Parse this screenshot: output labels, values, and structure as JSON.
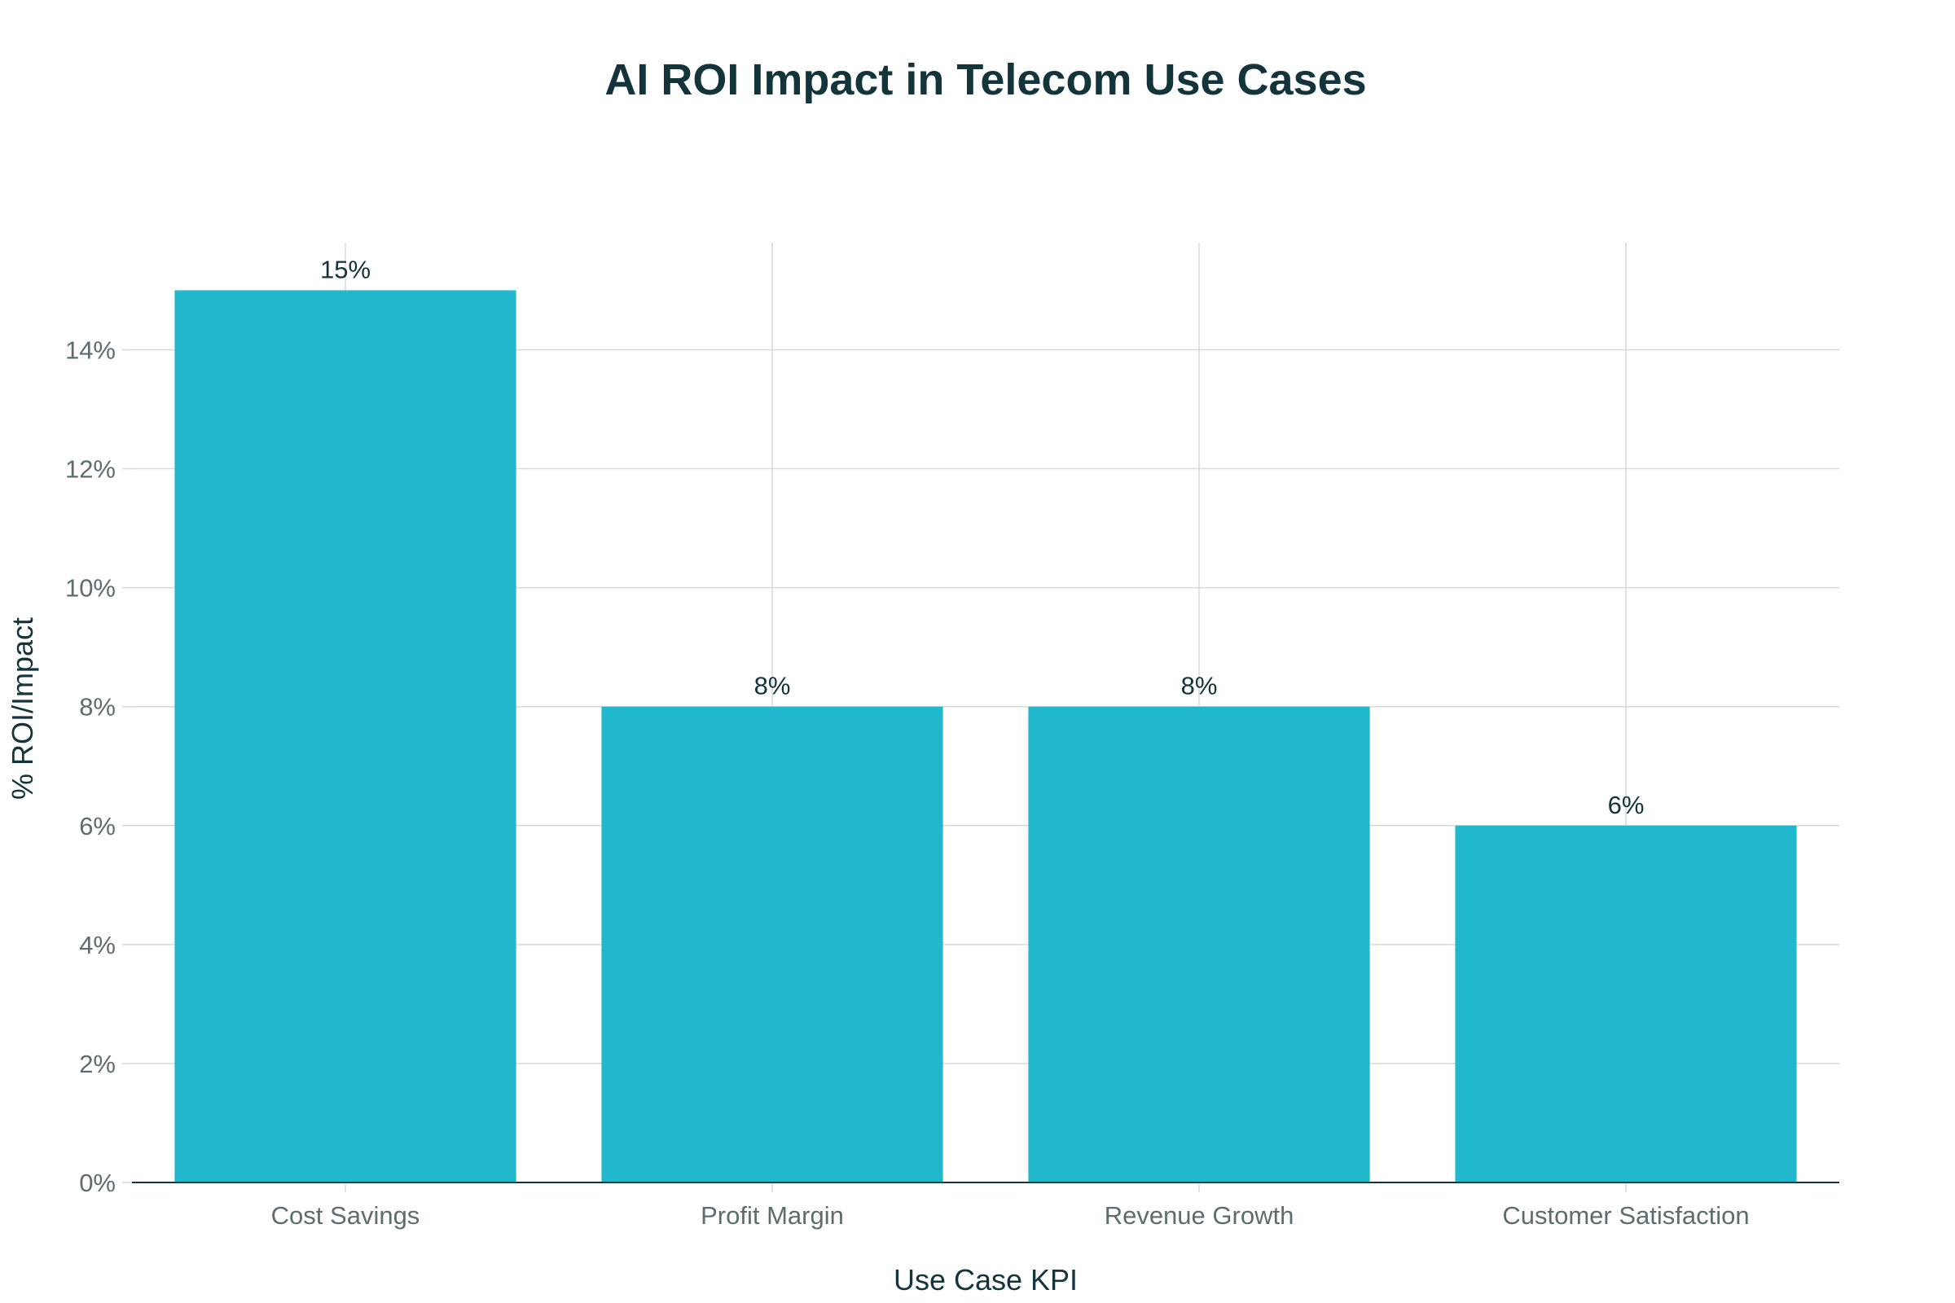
{
  "chart_data": {
    "type": "bar",
    "title": "AI ROI Impact in Telecom Use Cases",
    "xlabel": "Use Case KPI",
    "ylabel": "% ROI/Impact",
    "categories": [
      "Cost Savings",
      "Profit Margin",
      "Revenue Growth",
      "Customer Satisfaction"
    ],
    "values": [
      15,
      8,
      8,
      6
    ],
    "data_labels": [
      "15%",
      "8%",
      "8%",
      "6%"
    ],
    "ylim": [
      0,
      15.8
    ],
    "yticks": [
      0,
      2,
      4,
      6,
      8,
      10,
      12,
      14
    ],
    "ytick_labels": [
      "0%",
      "2%",
      "4%",
      "6%",
      "8%",
      "10%",
      "12%",
      "14%"
    ],
    "grid": true,
    "colors": {
      "bar": "#21B7CC",
      "title": "#13343B",
      "label": "#13343B",
      "tick": "#5E6C70",
      "grid": "#D9D9D9",
      "axis": "#13343B"
    }
  }
}
